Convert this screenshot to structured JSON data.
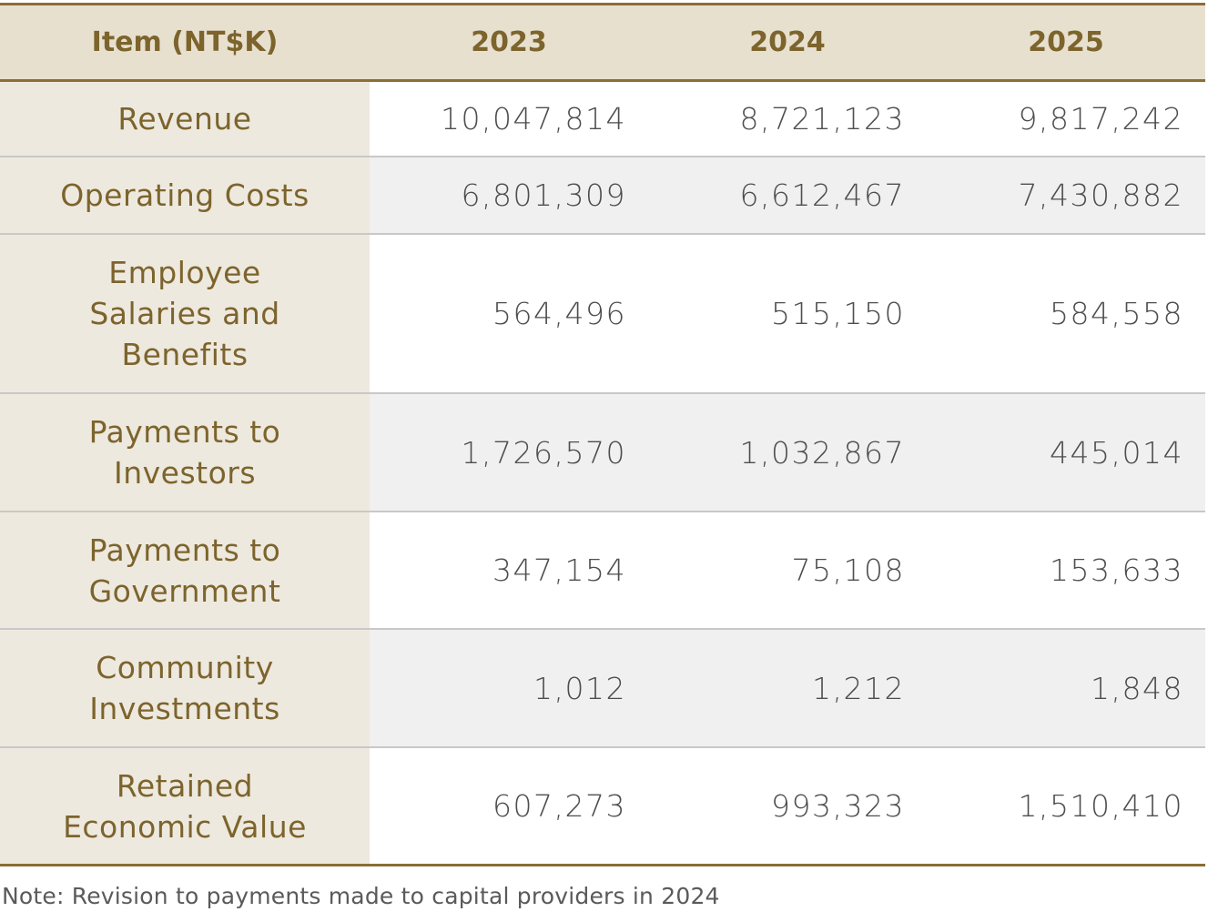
{
  "table": {
    "headers": [
      "Item (NT$K)",
      "2023",
      "2024",
      "2025"
    ],
    "rows": [
      {
        "item": "Revenue",
        "values": [
          "10,047,814",
          "8,721,123",
          "9,817,242"
        ]
      },
      {
        "item": "Operating Costs",
        "values": [
          "6,801,309",
          "6,612,467",
          "7,430,882"
        ]
      },
      {
        "item": "Employee Salaries and Benefits",
        "values": [
          "564,496",
          "515,150",
          "584,558"
        ]
      },
      {
        "item": "Payments to Investors",
        "values": [
          "1,726,570",
          "1,032,867",
          "445,014"
        ]
      },
      {
        "item": "Payments to Government",
        "values": [
          "347,154",
          "75,108",
          "153,633"
        ]
      },
      {
        "item": "Community Investments",
        "values": [
          "1,012",
          "1,212",
          "1,848"
        ]
      },
      {
        "item": "Retained Economic Value",
        "values": [
          "607,273",
          "993,323",
          "1,510,410"
        ]
      }
    ]
  },
  "note": "Note: Revision to payments made to capital providers in 2024",
  "colors": {
    "accent": "#8b6e35",
    "header_bg": "#e8e0cf",
    "label_text": "#7c642c",
    "item_bg": "#eee9df",
    "alt_row_bg": "#f0f0f0"
  }
}
